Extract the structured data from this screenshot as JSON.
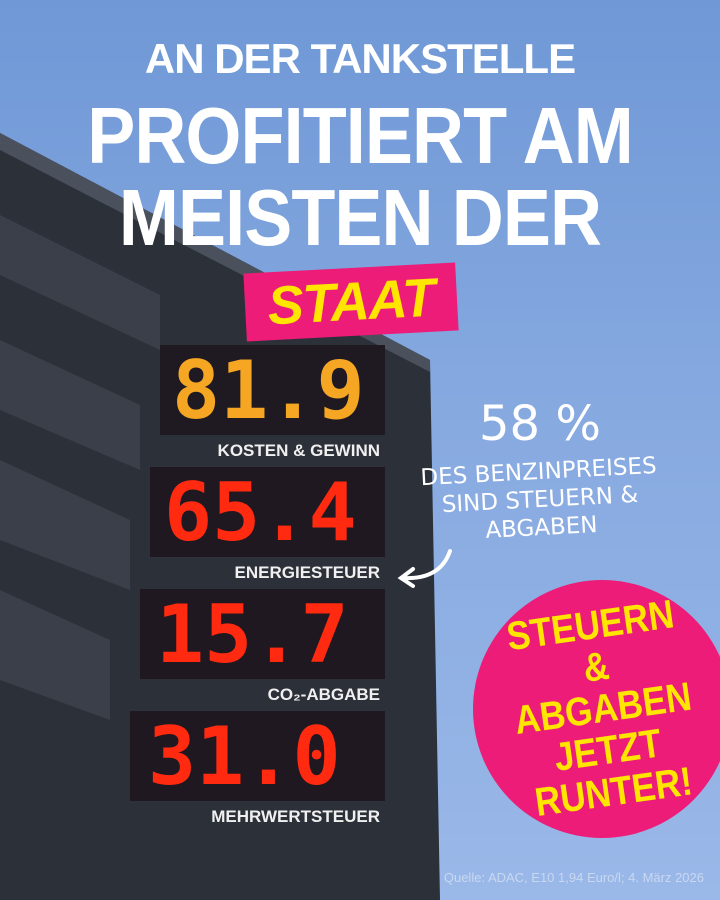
{
  "headline": {
    "line1": "AN DER TANKSTELLE",
    "line2": "PROFITIERT AM",
    "line3": "MEISTEN DER",
    "highlight": "STAAT"
  },
  "price_board": [
    {
      "value": "81.9",
      "label": "KOSTEN & GEWINN",
      "color": "#f5a623"
    },
    {
      "value": "65.4",
      "label": "ENERGIESTEUER",
      "color": "#ff2a10"
    },
    {
      "value": "15.7",
      "label": "CO₂-ABGABE",
      "color": "#ff2a10"
    },
    {
      "value": "31.0",
      "label": "MEHRWERTSTEUER",
      "color": "#ff2a10"
    }
  ],
  "annotation": {
    "percent": "58 %",
    "text": "DES BENZINPREISES SIND STEUERN & ABGABEN"
  },
  "callout": "STEUERN & ABGABEN JETZT RUNTER!",
  "source": "Quelle: ADAC, E10 1,94 Euro/l; 4. März 2026",
  "colors": {
    "accent": "#ec1c78",
    "highlight": "#ffe500",
    "sky": "#86a9e0"
  }
}
